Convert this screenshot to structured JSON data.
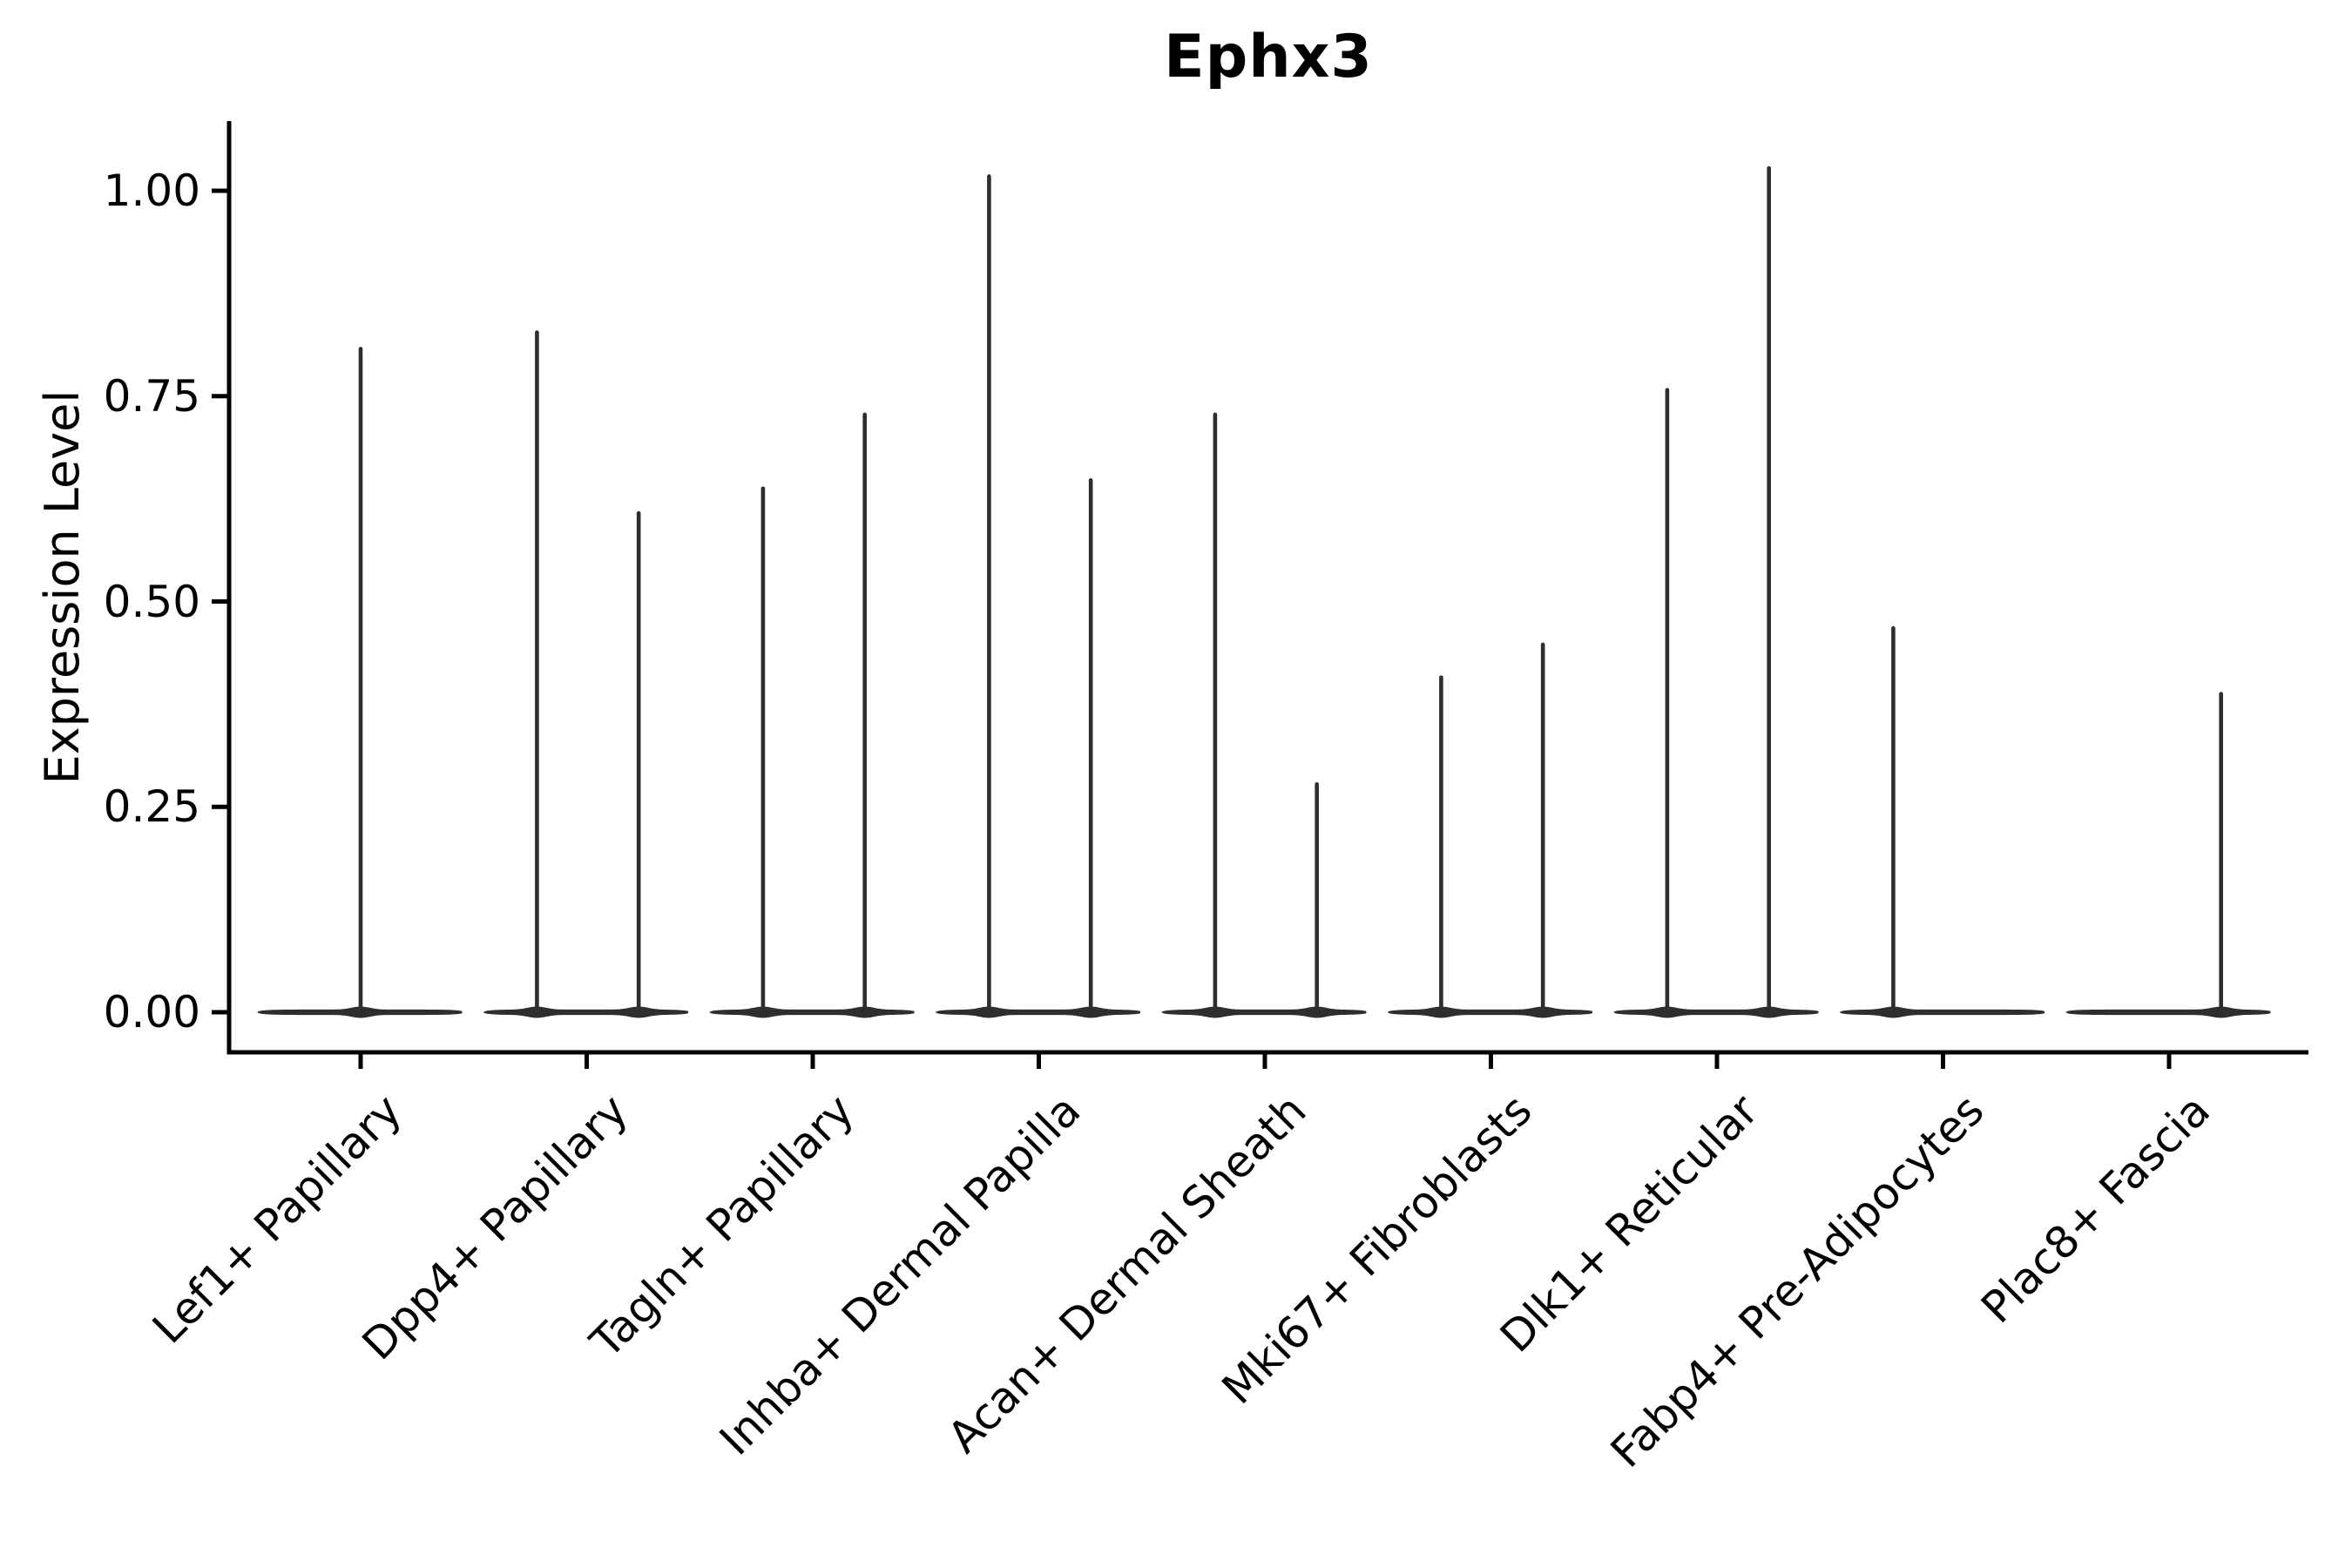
{
  "chart_data": {
    "type": "violin",
    "title": "Ephx3",
    "ylabel": "Expression Level",
    "xlabel": "",
    "grid": false,
    "legend": "none",
    "background_color": "#ffffff",
    "violin_color": "#2e2e2e",
    "axis_color": "#000000",
    "ylim": [
      -0.05,
      1.09
    ],
    "ytick_labels": [
      "0.00",
      "0.25",
      "0.50",
      "0.75",
      "1.00"
    ],
    "ytick_values": [
      0.0,
      0.25,
      0.5,
      0.75,
      1.0
    ],
    "categories": [
      "Lef1+ Papillary",
      "Dpp4+ Papillary",
      "Tagln+ Papillary",
      "Inhba+ Dermal Papilla",
      "Acan+ Dermal Sheath",
      "Mki67+ Fibroblasts",
      "Dlk1+ Reticular",
      "Fabp4+ Pre-Adipocytes",
      "Plac8+ Fascia"
    ],
    "violin_width": 0.9,
    "series": [
      {
        "category": "Lef1+ Papillary",
        "base_value": 0.0,
        "peaks": [
          {
            "offset": 0.0,
            "value": 0.81
          }
        ]
      },
      {
        "category": "Dpp4+ Papillary",
        "base_value": 0.0,
        "peaks": [
          {
            "offset": -0.22,
            "value": 0.83
          },
          {
            "offset": 0.23,
            "value": 0.61
          }
        ]
      },
      {
        "category": "Tagln+ Papillary",
        "base_value": 0.0,
        "peaks": [
          {
            "offset": -0.22,
            "value": 0.64
          },
          {
            "offset": 0.23,
            "value": 0.73
          }
        ]
      },
      {
        "category": "Inhba+ Dermal Papilla",
        "base_value": 0.0,
        "peaks": [
          {
            "offset": -0.22,
            "value": 1.02
          },
          {
            "offset": 0.23,
            "value": 0.65
          }
        ]
      },
      {
        "category": "Acan+ Dermal Sheath",
        "base_value": 0.0,
        "peaks": [
          {
            "offset": -0.22,
            "value": 0.73
          },
          {
            "offset": 0.23,
            "value": 0.28
          }
        ]
      },
      {
        "category": "Mki67+ Fibroblasts",
        "base_value": 0.0,
        "peaks": [
          {
            "offset": -0.22,
            "value": 0.41
          },
          {
            "offset": 0.23,
            "value": 0.45
          }
        ]
      },
      {
        "category": "Dlk1+ Reticular",
        "base_value": 0.0,
        "peaks": [
          {
            "offset": -0.22,
            "value": 0.76
          },
          {
            "offset": 0.23,
            "value": 1.03
          }
        ]
      },
      {
        "category": "Fabp4+ Pre-Adipocytes",
        "base_value": 0.0,
        "peaks": [
          {
            "offset": -0.22,
            "value": 0.47
          }
        ]
      },
      {
        "category": "Plac8+ Fascia",
        "base_value": 0.0,
        "peaks": [
          {
            "offset": 0.23,
            "value": 0.39
          }
        ]
      }
    ]
  }
}
